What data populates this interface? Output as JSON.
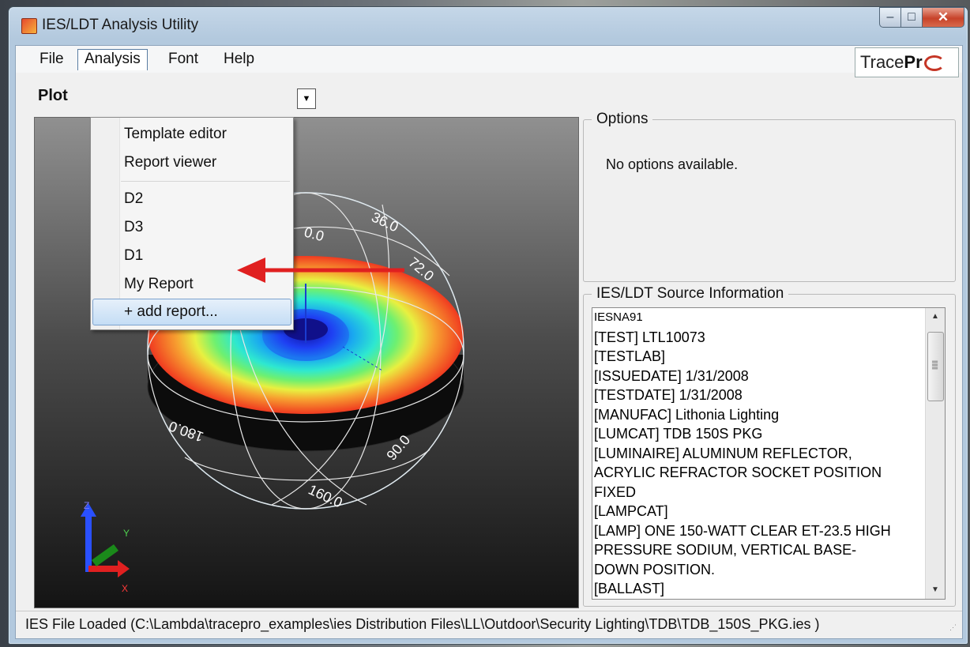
{
  "window": {
    "title": "IES/LDT Analysis Utility",
    "controls": {
      "minimize": "–",
      "maximize": "□",
      "close": "✕"
    }
  },
  "menubar": {
    "items": [
      "File",
      "Analysis",
      "Font",
      "Help"
    ],
    "logo_main": "Trace",
    "logo_bold": "Pr"
  },
  "toolbar": {
    "plot_label": "Plot",
    "combo_arrow": "▼"
  },
  "analysis_menu": {
    "items": [
      "Template editor",
      "Report viewer",
      "D2",
      "D3",
      "D1",
      "My Report",
      "+ add report..."
    ],
    "highlighted": "+ add report..."
  },
  "plot": {
    "angle_labels": [
      "36.0",
      "0.0",
      "72.0",
      "180.0",
      "90.0",
      "160.0"
    ],
    "axis_labels": {
      "x": "X",
      "y": "Y",
      "z": "Z"
    }
  },
  "options": {
    "title": "Options",
    "message": "No options available."
  },
  "source_info": {
    "title": "IES/LDT Source Information",
    "lines": [
      "IESNA91",
      "[TEST] LTL10073",
      "[TESTLAB]",
      "[ISSUEDATE] 1/31/2008",
      "[TESTDATE] 1/31/2008",
      "[MANUFAC] Lithonia Lighting",
      "[LUMCAT] TDB 150S PKG",
      "[LUMINAIRE] ALUMINUM REFLECTOR,",
      "ACRYLIC REFRACTOR SOCKET POSITION",
      "FIXED",
      "[LAMPCAT]",
      "[LAMP] ONE 150-WATT CLEAR ET-23.5 HIGH",
      "PRESSURE SODIUM, VERTICAL BASE-",
      "DOWN POSITION.",
      "[BALLAST]"
    ]
  },
  "status": {
    "text": "IES File Loaded (C:\\Lambda\\tracepro_examples\\ies Distribution Files\\LL\\Outdoor\\Security Lighting\\TDB\\TDB_150S_PKG.ies )"
  },
  "colors": {
    "annotation_arrow": "#e02020",
    "highlight": "#c4ddf5"
  }
}
